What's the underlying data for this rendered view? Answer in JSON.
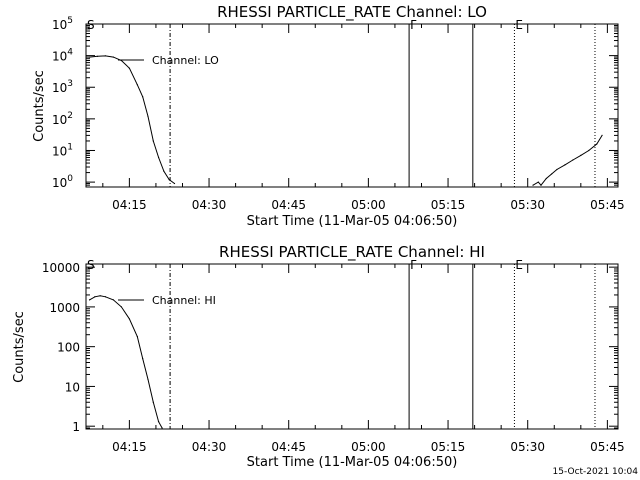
{
  "chart_data": [
    {
      "type": "line",
      "title": "RHESSI PARTICLE_RATE Channel: LO",
      "xlabel": "Start Time (11-Mar-05 04:06:50)",
      "ylabel": "Counts/sec",
      "y_scale": "log",
      "ylim": [
        0.7,
        100000
      ],
      "xlim": [
        "04:06:50",
        "05:47:00"
      ],
      "x_tick_labels": [
        "04:15",
        "04:30",
        "04:45",
        "05:00",
        "05:15",
        "05:30",
        "05:45"
      ],
      "y_tick_labels": [
        {
          "base": "10",
          "exp": "0"
        },
        {
          "base": "10",
          "exp": "1"
        },
        {
          "base": "10",
          "exp": "2"
        },
        {
          "base": "10",
          "exp": "3"
        },
        {
          "base": "10",
          "exp": "4"
        },
        {
          "base": "10",
          "exp": "5"
        }
      ],
      "grid": false,
      "legend": "top-left",
      "series": [
        {
          "name": "Channel: LO",
          "segments": [
            {
              "x": [
                "04:07:30",
                "04:09:00",
                "04:10:30",
                "04:12:00",
                "04:13:30",
                "04:15:00",
                "04:16:30",
                "04:17:30",
                "04:18:30",
                "04:19:30",
                "04:20:30",
                "04:21:30",
                "04:22:30",
                "04:23:30"
              ],
              "y": [
                9000,
                9500,
                9800,
                9000,
                7000,
                4000,
                1200,
                500,
                120,
                20,
                6,
                2.2,
                1.2,
                0.9
              ]
            },
            {
              "x": [
                "05:31:00",
                "05:32:00",
                "05:32:30",
                "05:33:30",
                "05:34:30",
                "05:35:30",
                "05:37:00",
                "05:38:30",
                "05:40:00",
                "05:41:30",
                "05:43:00",
                "05:44:00"
              ],
              "y": [
                0.8,
                1.0,
                0.8,
                1.3,
                1.8,
                2.5,
                3.5,
                5,
                7,
                10,
                16,
                30
              ]
            }
          ]
        }
      ],
      "markers": [
        {
          "label": "S",
          "x": "04:06:50",
          "style": "solid"
        },
        {
          "label": "",
          "x": "04:22:40",
          "style": "dashdot"
        },
        {
          "label": "F",
          "x": "05:07:40",
          "style": "solid"
        },
        {
          "label": "",
          "x": "05:19:40",
          "style": "solid"
        },
        {
          "label": "E",
          "x": "05:27:30",
          "style": "dotted"
        },
        {
          "label": "",
          "x": "05:42:40",
          "style": "dotted"
        }
      ]
    },
    {
      "type": "line",
      "title": "RHESSI PARTICLE_RATE Channel: HI",
      "xlabel": "Start Time (11-Mar-05 04:06:50)",
      "ylabel": "Counts/sec",
      "y_scale": "log",
      "ylim": [
        0.85,
        12000
      ],
      "xlim": [
        "04:06:50",
        "05:47:00"
      ],
      "x_tick_labels": [
        "04:15",
        "04:30",
        "04:45",
        "05:00",
        "05:15",
        "05:30",
        "05:45"
      ],
      "y_tick_labels": [
        "1",
        "10",
        "100",
        "1000",
        "10000"
      ],
      "grid": false,
      "legend": "top-left",
      "series": [
        {
          "name": "Channel: HI",
          "segments": [
            {
              "x": [
                "04:07:30",
                "04:08:30",
                "04:09:30",
                "04:10:30",
                "04:12:00",
                "04:13:30",
                "04:15:00",
                "04:16:30",
                "04:17:30",
                "04:18:30",
                "04:19:30",
                "04:20:30",
                "04:21:10"
              ],
              "y": [
                1500,
                1800,
                1900,
                1800,
                1500,
                1000,
                500,
                180,
                50,
                15,
                4,
                1.3,
                0.9
              ]
            }
          ]
        }
      ],
      "markers": [
        {
          "label": "S",
          "x": "04:06:50",
          "style": "solid"
        },
        {
          "label": "",
          "x": "04:22:40",
          "style": "dashdot"
        },
        {
          "label": "F",
          "x": "05:07:40",
          "style": "solid"
        },
        {
          "label": "",
          "x": "05:19:40",
          "style": "solid"
        },
        {
          "label": "E",
          "x": "05:27:30",
          "style": "dotted"
        },
        {
          "label": "",
          "x": "05:42:40",
          "style": "dotted"
        }
      ]
    }
  ],
  "footer": {
    "timestamp": "15-Oct-2021 10:04"
  },
  "colors": {
    "background": "#ffffff",
    "ink": "#000000"
  }
}
